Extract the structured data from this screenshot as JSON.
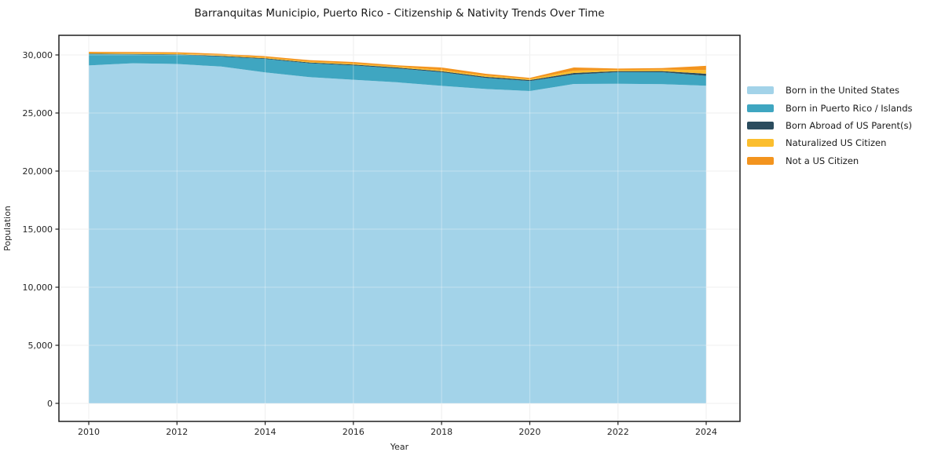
{
  "chart_data": {
    "type": "area",
    "stacked": true,
    "title": "Barranquitas Municipio, Puerto Rico - Citizenship & Nativity Trends Over Time",
    "xlabel": "Year",
    "ylabel": "Population",
    "x": [
      2010,
      2011,
      2012,
      2013,
      2014,
      2015,
      2016,
      2017,
      2018,
      2019,
      2020,
      2021,
      2022,
      2023,
      2024
    ],
    "series": [
      {
        "name": "Born in the United States",
        "color": "#A3D3E9",
        "values": [
          29100,
          29280,
          29220,
          29000,
          28500,
          28090,
          27860,
          27640,
          27340,
          27070,
          26890,
          27500,
          27520,
          27480,
          27350
        ]
      },
      {
        "name": "Born in Puerto Rico / Islands",
        "color": "#3FA6C1",
        "values": [
          970,
          760,
          790,
          860,
          1150,
          1190,
          1240,
          1195,
          1170,
          950,
          860,
          810,
          1000,
          1030,
          850
        ]
      },
      {
        "name": "Born Abroad of US Parent(s)",
        "color": "#2B4C5E",
        "values": [
          40,
          45,
          50,
          55,
          60,
          70,
          75,
          80,
          90,
          100,
          90,
          135,
          90,
          100,
          180
        ]
      },
      {
        "name": "Naturalized US Citizen",
        "color": "#FBBE2E",
        "values": [
          60,
          65,
          65,
          70,
          70,
          80,
          85,
          90,
          100,
          110,
          80,
          200,
          100,
          120,
          320
        ]
      },
      {
        "name": "Not a US Citizen",
        "color": "#F3941E",
        "values": [
          100,
          100,
          105,
          110,
          110,
          120,
          130,
          100,
          220,
          150,
          100,
          270,
          120,
          140,
          360
        ]
      }
    ],
    "totals": [
      30270,
      30250,
      30230,
      30095,
      29890,
      29550,
      29390,
      29105,
      28920,
      28380,
      28020,
      28915,
      28830,
      28870,
      29060
    ],
    "xtick_values": [
      2010,
      2012,
      2014,
      2016,
      2018,
      2020,
      2022,
      2024
    ],
    "xtick_labels": [
      "2010",
      "2012",
      "2014",
      "2016",
      "2018",
      "2020",
      "2022",
      "2024"
    ],
    "ytick_values": [
      0,
      5000,
      10000,
      15000,
      20000,
      25000,
      30000
    ],
    "ytick_labels": [
      "0",
      "5,000",
      "10,000",
      "15,000",
      "20,000",
      "25,000",
      "30,000"
    ],
    "xlim": [
      2009.3,
      2024.8
    ],
    "ylim": [
      -1550,
      31690
    ],
    "grid": true,
    "legend_position": "right-outside",
    "style": {
      "grid_color": "#e6e6e6",
      "grid_overlay_color": "rgba(255,255,255,0.35)",
      "spine_color": "#1f1f1f",
      "tick_color": "#1f1f1f",
      "label_color": "#262626"
    }
  }
}
